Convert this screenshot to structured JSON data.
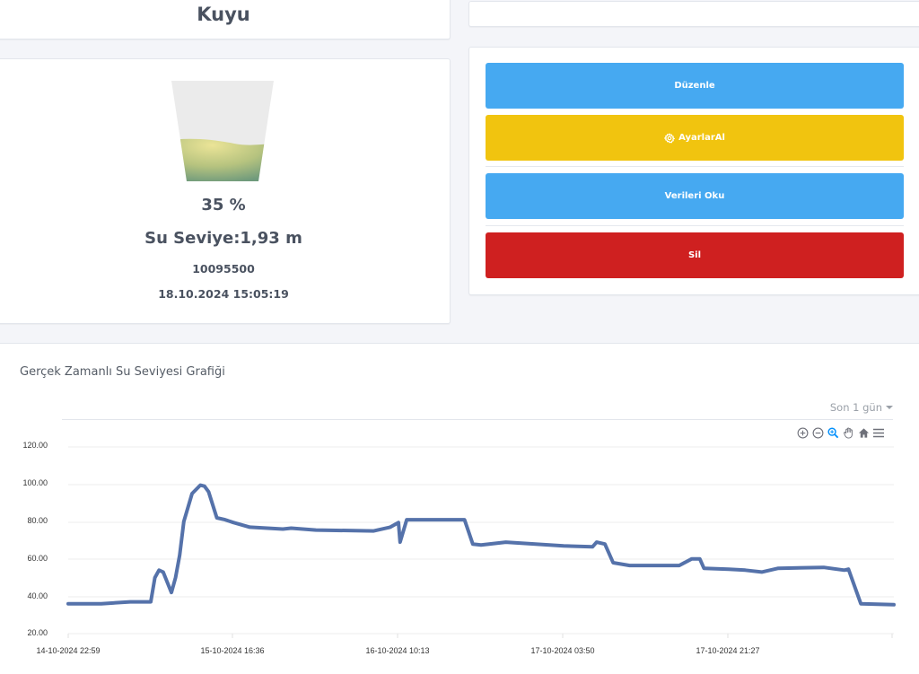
{
  "header": {
    "title": "Kuyu"
  },
  "gauge": {
    "percent_label": "35 %",
    "percent": 35,
    "level_label": "Su Seviye:1,93 m",
    "device_id": "10095500",
    "timestamp": "18.10.2024 15:05:19",
    "fill_colors": {
      "light": "#e8e29a",
      "dark": "#6f9a7c",
      "empty": "#ebebeb"
    }
  },
  "actions": {
    "edit_label": "Düzenle",
    "get_settings_label": "AyarlarAl",
    "read_data_label": "Verileri Oku",
    "delete_label": "Sil",
    "colors": {
      "blue": "#46a9f1",
      "yellow": "#f1c40f",
      "red": "#cf2020"
    }
  },
  "chart": {
    "title": "Gerçek Zamanlı Su Seviyesi Grafiği",
    "range_select": "Son 1 gün",
    "toolbar": [
      "zoom-in",
      "zoom-out",
      "zoom-selection",
      "pan",
      "reset-home",
      "menu"
    ],
    "line_color": "#5572aa"
  },
  "chart_data": {
    "type": "line",
    "title": "Gerçek Zamanlı Su Seviyesi Grafiği",
    "xlabel": "",
    "ylabel": "",
    "ylim": [
      20,
      120
    ],
    "yticks": [
      "120.00",
      "100.00",
      "80.00",
      "60.00",
      "40.00",
      "20.00"
    ],
    "xticks": [
      "14-10-2024 22:59",
      "15-10-2024 16:36",
      "16-10-2024 10:13",
      "17-10-2024 03:50",
      "17-10-2024 21:27"
    ],
    "grid": true,
    "legend": "none",
    "series": [
      {
        "name": "Su Seviyesi",
        "x": [
          0,
          0.04,
          0.075,
          0.1,
          0.105,
          0.11,
          0.115,
          0.125,
          0.13,
          0.135,
          0.14,
          0.15,
          0.16,
          0.165,
          0.17,
          0.18,
          0.19,
          0.2,
          0.22,
          0.26,
          0.27,
          0.3,
          0.37,
          0.39,
          0.4,
          0.402,
          0.41,
          0.47,
          0.48,
          0.49,
          0.5,
          0.53,
          0.6,
          0.635,
          0.64,
          0.65,
          0.66,
          0.68,
          0.74,
          0.755,
          0.765,
          0.77,
          0.8,
          0.82,
          0.84,
          0.86,
          0.915,
          0.94,
          0.945,
          0.96,
          1.0
        ],
        "values": [
          36,
          36,
          37,
          37,
          50,
          54,
          53,
          42,
          50,
          62,
          80,
          95,
          99.5,
          99,
          96,
          82,
          81,
          79.5,
          77,
          76,
          76.5,
          75.5,
          75,
          77,
          79.5,
          69,
          81,
          81,
          81,
          68,
          67.5,
          69,
          67,
          66.5,
          69,
          68,
          58,
          56.5,
          56.5,
          60,
          60,
          55,
          54.5,
          54,
          53,
          55,
          55.5,
          54,
          54.5,
          36,
          35.5
        ]
      }
    ]
  }
}
